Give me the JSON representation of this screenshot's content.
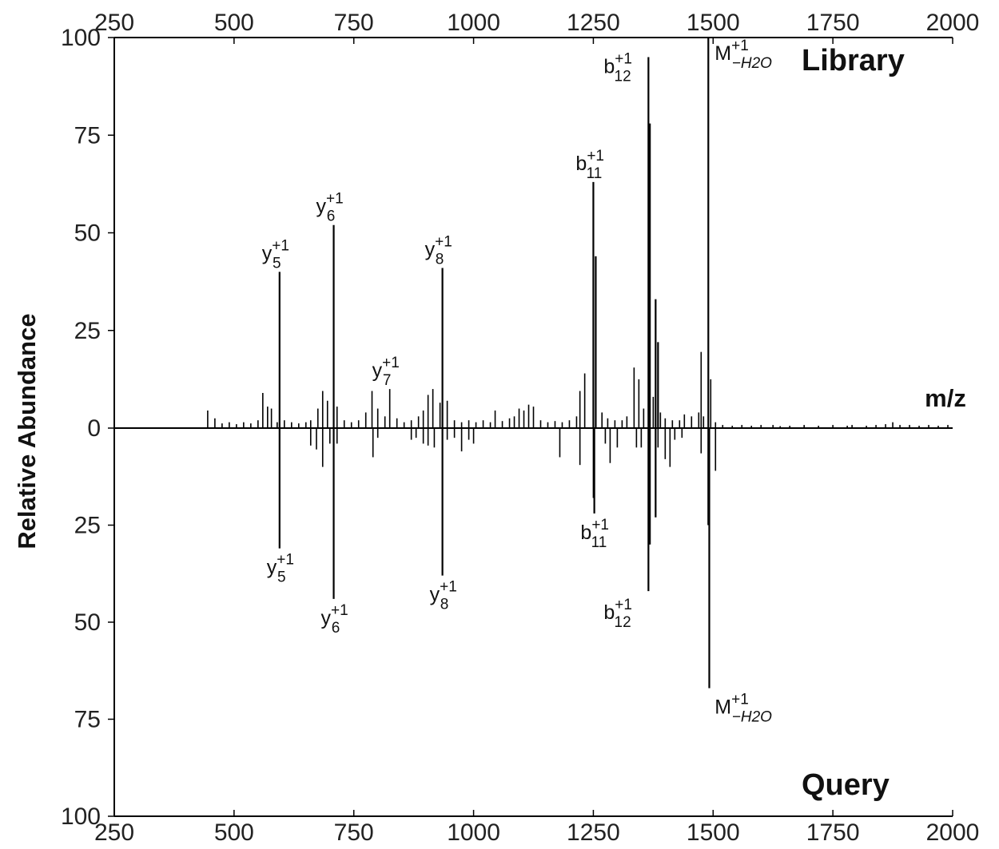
{
  "chart_data": {
    "type": "bar",
    "subtype": "mirror-spectrum",
    "xlabel": "m/z",
    "ylabel": "Relative Abundance",
    "xlim": [
      250,
      2000
    ],
    "xticks": [
      250,
      500,
      750,
      1000,
      1250,
      1500,
      1750,
      2000
    ],
    "ylim_top": [
      0,
      100
    ],
    "ylim_bottom": [
      0,
      100
    ],
    "yticks": [
      0,
      25,
      50,
      75,
      100
    ],
    "top_panel_label": "Library",
    "bottom_panel_label": "Query",
    "grid": false,
    "series": [
      {
        "name": "Library",
        "direction": "up",
        "peaks": [
          [
            445,
            4.5
          ],
          [
            460,
            2.5
          ],
          [
            475,
            1.2
          ],
          [
            490,
            1.5
          ],
          [
            505,
            1
          ],
          [
            520,
            1.5
          ],
          [
            535,
            1.2
          ],
          [
            550,
            2
          ],
          [
            560,
            9
          ],
          [
            570,
            5.5
          ],
          [
            578,
            5
          ],
          [
            590,
            1.5
          ],
          [
            595,
            40
          ],
          [
            605,
            2
          ],
          [
            620,
            1.5
          ],
          [
            635,
            1.2
          ],
          [
            650,
            1.5
          ],
          [
            660,
            2
          ],
          [
            675,
            5
          ],
          [
            685,
            9.5
          ],
          [
            695,
            7
          ],
          [
            708,
            52
          ],
          [
            715,
            5.5
          ],
          [
            730,
            2
          ],
          [
            745,
            1.5
          ],
          [
            760,
            2
          ],
          [
            775,
            4
          ],
          [
            788,
            9.5
          ],
          [
            800,
            5
          ],
          [
            815,
            3
          ],
          [
            825,
            10
          ],
          [
            840,
            2.5
          ],
          [
            855,
            1.5
          ],
          [
            870,
            2
          ],
          [
            885,
            3
          ],
          [
            895,
            4.5
          ],
          [
            905,
            8.5
          ],
          [
            915,
            10
          ],
          [
            930,
            6.5
          ],
          [
            935,
            41
          ],
          [
            945,
            7
          ],
          [
            960,
            2
          ],
          [
            975,
            1.5
          ],
          [
            990,
            2
          ],
          [
            1005,
            1.5
          ],
          [
            1020,
            2
          ],
          [
            1035,
            1.5
          ],
          [
            1045,
            4.5
          ],
          [
            1060,
            1.8
          ],
          [
            1075,
            2.5
          ],
          [
            1085,
            3
          ],
          [
            1095,
            5
          ],
          [
            1105,
            4.5
          ],
          [
            1115,
            6
          ],
          [
            1125,
            5.5
          ],
          [
            1140,
            2
          ],
          [
            1155,
            1.5
          ],
          [
            1170,
            1.8
          ],
          [
            1185,
            1.5
          ],
          [
            1200,
            2
          ],
          [
            1215,
            3
          ],
          [
            1222,
            9.5
          ],
          [
            1232,
            14
          ],
          [
            1250,
            63
          ],
          [
            1255,
            44
          ],
          [
            1268,
            4
          ],
          [
            1280,
            2.5
          ],
          [
            1295,
            2
          ],
          [
            1310,
            2
          ],
          [
            1320,
            3
          ],
          [
            1335,
            15.5
          ],
          [
            1345,
            12.5
          ],
          [
            1355,
            5
          ],
          [
            1365,
            95
          ],
          [
            1368,
            78
          ],
          [
            1375,
            8
          ],
          [
            1380,
            33
          ],
          [
            1385,
            22
          ],
          [
            1390,
            4
          ],
          [
            1400,
            2.5
          ],
          [
            1415,
            2
          ],
          [
            1430,
            2
          ],
          [
            1440,
            3.5
          ],
          [
            1455,
            3
          ],
          [
            1470,
            4
          ],
          [
            1475,
            19.5
          ],
          [
            1480,
            3
          ],
          [
            1490,
            100
          ],
          [
            1495,
            12.5
          ],
          [
            1505,
            1.5
          ],
          [
            1520,
            0.8
          ],
          [
            1540,
            0.6
          ],
          [
            1560,
            0.8
          ],
          [
            1580,
            0.6
          ],
          [
            1600,
            0.8
          ],
          [
            1625,
            0.8
          ],
          [
            1640,
            0.5
          ],
          [
            1660,
            0.6
          ],
          [
            1690,
            0.8
          ],
          [
            1720,
            0.6
          ],
          [
            1750,
            0.8
          ],
          [
            1780,
            0.6
          ],
          [
            1790,
            0.8
          ],
          [
            1820,
            0.6
          ],
          [
            1840,
            0.8
          ],
          [
            1860,
            1
          ],
          [
            1875,
            1.5
          ],
          [
            1890,
            0.8
          ],
          [
            1910,
            0.8
          ],
          [
            1930,
            0.6
          ],
          [
            1950,
            0.8
          ],
          [
            1970,
            0.6
          ],
          [
            1990,
            0.8
          ]
        ]
      },
      {
        "name": "Query",
        "direction": "down",
        "peaks": [
          [
            595,
            31
          ],
          [
            660,
            4.5
          ],
          [
            672,
            5.5
          ],
          [
            685,
            10
          ],
          [
            700,
            4
          ],
          [
            708,
            44
          ],
          [
            715,
            4
          ],
          [
            790,
            7.5
          ],
          [
            800,
            2.5
          ],
          [
            870,
            3
          ],
          [
            880,
            2.5
          ],
          [
            895,
            4
          ],
          [
            905,
            4.5
          ],
          [
            918,
            5
          ],
          [
            935,
            38
          ],
          [
            945,
            3
          ],
          [
            960,
            2.5
          ],
          [
            975,
            6
          ],
          [
            990,
            3
          ],
          [
            1000,
            4
          ],
          [
            1180,
            7.5
          ],
          [
            1222,
            9.5
          ],
          [
            1250,
            18
          ],
          [
            1252,
            22
          ],
          [
            1275,
            4
          ],
          [
            1285,
            9
          ],
          [
            1300,
            5
          ],
          [
            1340,
            5
          ],
          [
            1350,
            5
          ],
          [
            1365,
            42
          ],
          [
            1368,
            30
          ],
          [
            1380,
            23
          ],
          [
            1385,
            5
          ],
          [
            1400,
            8
          ],
          [
            1410,
            10
          ],
          [
            1420,
            3
          ],
          [
            1435,
            2.5
          ],
          [
            1475,
            6.5
          ],
          [
            1490,
            25
          ],
          [
            1492,
            67
          ],
          [
            1505,
            11
          ]
        ]
      }
    ],
    "annotations": [
      {
        "panel": "top",
        "ion": "y",
        "index": "5",
        "charge": "+1",
        "mz": 595
      },
      {
        "panel": "top",
        "ion": "y",
        "index": "6",
        "charge": "+1",
        "mz": 708
      },
      {
        "panel": "top",
        "ion": "y",
        "index": "7",
        "charge": "+1",
        "mz": 825
      },
      {
        "panel": "top",
        "ion": "y",
        "index": "8",
        "charge": "+1",
        "mz": 935
      },
      {
        "panel": "top",
        "ion": "b",
        "index": "11",
        "charge": "+1",
        "mz": 1250
      },
      {
        "panel": "top",
        "ion": "b",
        "index": "12",
        "charge": "+1",
        "mz": 1365
      },
      {
        "panel": "top",
        "ion": "M",
        "index": "−H2O",
        "charge": "+1",
        "mz": 1490
      },
      {
        "panel": "bottom",
        "ion": "y",
        "index": "5",
        "charge": "+1",
        "mz": 595
      },
      {
        "panel": "bottom",
        "ion": "y",
        "index": "6",
        "charge": "+1",
        "mz": 708
      },
      {
        "panel": "bottom",
        "ion": "y",
        "index": "8",
        "charge": "+1",
        "mz": 935
      },
      {
        "panel": "bottom",
        "ion": "b",
        "index": "11",
        "charge": "+1",
        "mz": 1250
      },
      {
        "panel": "bottom",
        "ion": "b",
        "index": "12",
        "charge": "+1",
        "mz": 1365
      },
      {
        "panel": "bottom",
        "ion": "M",
        "index": "−H2O",
        "charge": "+1",
        "mz": 1490
      }
    ]
  }
}
